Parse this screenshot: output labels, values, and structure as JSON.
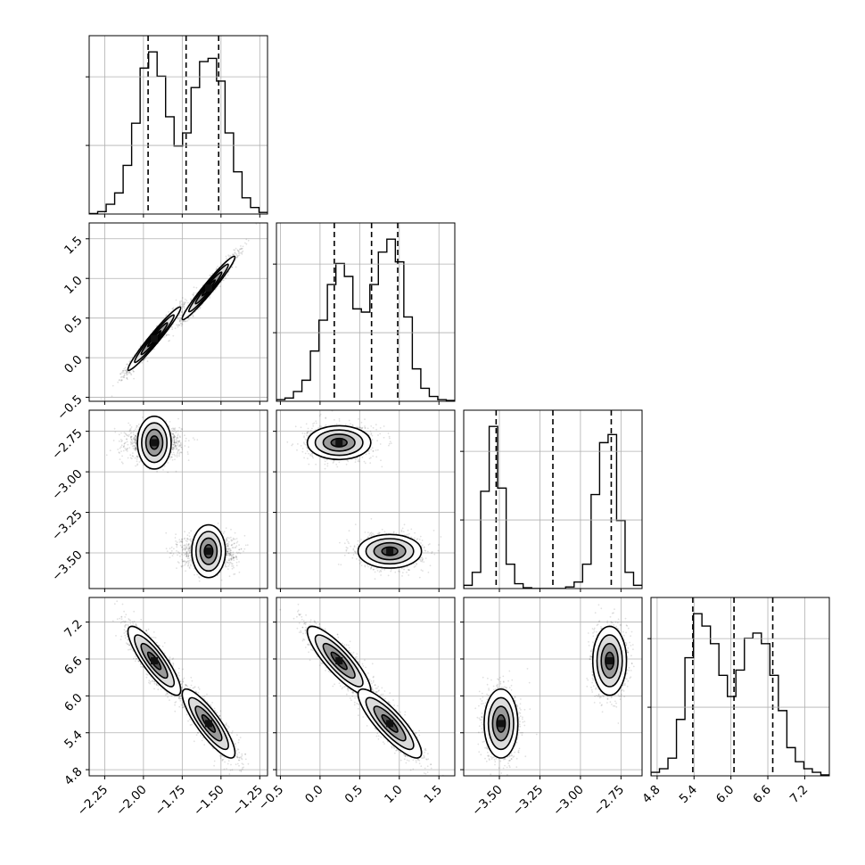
{
  "chart_data": {
    "type": "corner",
    "grid": true,
    "parameters": [
      {
        "range": [
          -2.35,
          -1.2
        ],
        "ticks": [
          -2.25,
          -2.0,
          -1.75,
          -1.5,
          -1.25
        ],
        "tick_labels": [
          "−2.25",
          "−2.00",
          "−1.75",
          "−1.50",
          "−1.25"
        ],
        "quantiles": [
          -1.97,
          -1.725,
          -1.515
        ],
        "histogram": [
          0.003,
          0.015,
          0.06,
          0.13,
          0.3,
          0.56,
          0.9,
          1.0,
          0.85,
          0.6,
          0.42,
          0.5,
          0.78,
          0.94,
          0.96,
          0.82,
          0.5,
          0.26,
          0.1,
          0.04,
          0.01
        ]
      },
      {
        "range": [
          -0.55,
          1.7
        ],
        "ticks": [
          -0.5,
          0.0,
          0.5,
          1.0,
          1.5
        ],
        "tick_labels": [
          "−0.5",
          "0.0",
          "0.5",
          "1.0",
          "1.5"
        ],
        "quantiles": [
          0.18,
          0.65,
          0.98
        ],
        "histogram": [
          0.01,
          0.02,
          0.06,
          0.13,
          0.31,
          0.5,
          0.72,
          0.85,
          0.77,
          0.57,
          0.55,
          0.72,
          0.92,
          1.0,
          0.86,
          0.52,
          0.2,
          0.08,
          0.03,
          0.01,
          0.005
        ],
        "row_tick_labels": [
          "−0.5",
          "0.0",
          "0.5",
          "1.0",
          "1.5"
        ]
      },
      {
        "range": [
          -3.72,
          -2.62
        ],
        "ticks": [
          -3.5,
          -3.25,
          -3.0,
          -2.75
        ],
        "tick_labels": [
          "−3.50",
          "−3.25",
          "−3.00",
          "−2.75"
        ],
        "quantiles": [
          -3.52,
          -3.17,
          -2.81
        ],
        "histogram": [
          0.02,
          0.1,
          0.6,
          1.0,
          0.62,
          0.15,
          0.03,
          0.005,
          0.0,
          0.0,
          0.0,
          0.0,
          0.01,
          0.04,
          0.15,
          0.58,
          0.9,
          0.95,
          0.42,
          0.1,
          0.02
        ],
        "row_tick_labels": [
          "−3.50",
          "−3.25",
          "−3.00",
          "−2.75"
        ]
      },
      {
        "range": [
          4.7,
          7.6
        ],
        "ticks": [
          4.8,
          5.4,
          6.0,
          6.6,
          7.2
        ],
        "tick_labels": [
          "4.8",
          "5.4",
          "6.0",
          "6.6",
          "7.2"
        ],
        "quantiles": [
          5.38,
          6.05,
          6.68
        ],
        "histogram": [
          0.02,
          0.04,
          0.1,
          0.32,
          0.67,
          0.92,
          0.85,
          0.75,
          0.57,
          0.45,
          0.6,
          0.78,
          0.81,
          0.75,
          0.57,
          0.37,
          0.16,
          0.08,
          0.04,
          0.02,
          0.005
        ],
        "row_tick_labels": [
          "4.8",
          "5.4",
          "6.0",
          "6.6",
          "7.2"
        ]
      }
    ],
    "modes": [
      {
        "means": [
          -1.93,
          0.24,
          -2.82,
          6.57
        ],
        "stds": [
          0.085,
          0.2,
          0.052,
          0.28
        ],
        "corr": {
          "0-1": 0.97,
          "0-3": -0.85,
          "1-3": -0.85
        }
      },
      {
        "means": [
          -1.58,
          0.88,
          -3.49,
          5.55
        ],
        "stds": [
          0.085,
          0.2,
          0.052,
          0.28
        ],
        "corr": {
          "0-1": 0.97,
          "0-3": -0.85,
          "1-3": -0.85
        }
      }
    ]
  }
}
